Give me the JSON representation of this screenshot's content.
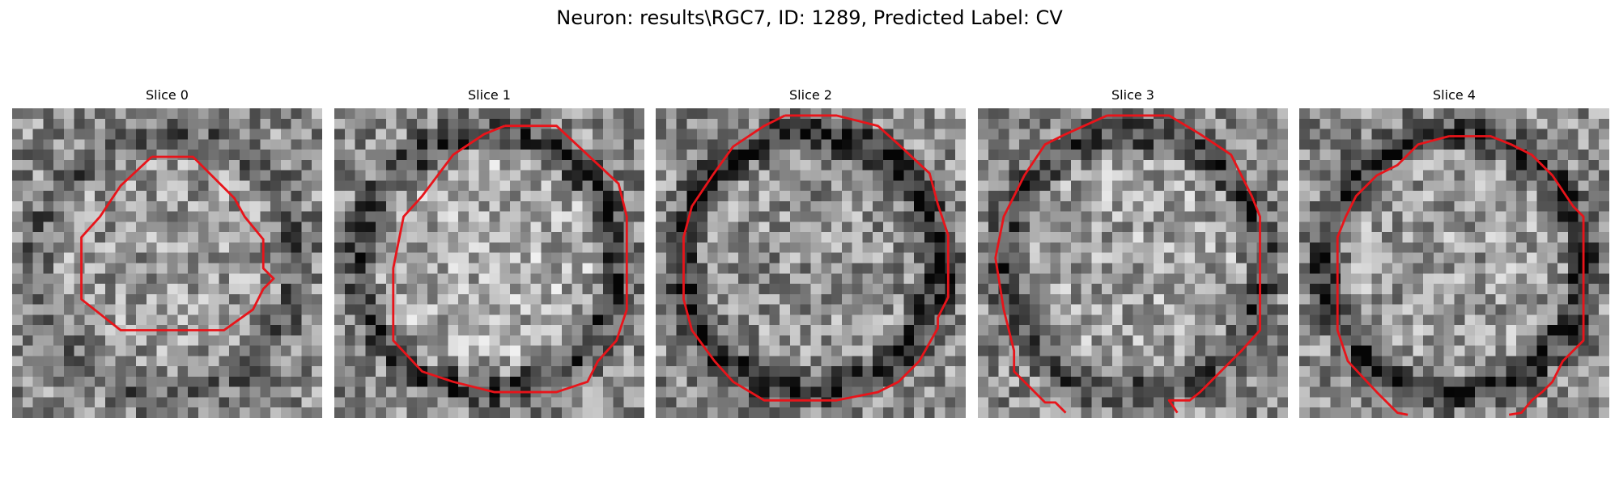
{
  "figure": {
    "title": "Neuron: results\\RGC7, ID: 1289, Predicted Label: CV"
  },
  "colors": {
    "outline": "#e8141a",
    "background": "#ffffff"
  },
  "grid_size": 30,
  "panels": [
    {
      "title": "Slice 0",
      "seed": 11,
      "ring_darkness": 0.18,
      "inner_brightness": 0.05,
      "outline": [
        [
          13.5,
          4.7
        ],
        [
          17.5,
          4.7
        ],
        [
          21.5,
          8.7
        ],
        [
          22.5,
          10.5
        ],
        [
          24.3,
          12.7
        ],
        [
          24.3,
          15.5
        ],
        [
          25.3,
          16.5
        ],
        [
          24.3,
          17.5
        ],
        [
          23.3,
          19.5
        ],
        [
          20.5,
          21.5
        ],
        [
          10.5,
          21.5
        ],
        [
          6.7,
          18.5
        ],
        [
          6.7,
          12.5
        ],
        [
          8.5,
          10.5
        ],
        [
          10.5,
          7.5
        ],
        [
          13.5,
          4.7
        ]
      ]
    },
    {
      "title": "Slice 1",
      "seed": 23,
      "ring_darkness": 0.32,
      "inner_brightness": 0.12,
      "outline": [
        [
          16.5,
          1.7
        ],
        [
          21.5,
          1.7
        ],
        [
          24.5,
          4.5
        ],
        [
          27.5,
          7.3
        ],
        [
          28.3,
          10.5
        ],
        [
          28.3,
          17.5
        ],
        [
          28.3,
          19.5
        ],
        [
          27.3,
          22.5
        ],
        [
          25.5,
          24.5
        ],
        [
          24.5,
          26.5
        ],
        [
          21.5,
          27.5
        ],
        [
          15.5,
          27.5
        ],
        [
          11.5,
          26.5
        ],
        [
          8.5,
          25.5
        ],
        [
          5.7,
          22.5
        ],
        [
          5.7,
          16.5
        ],
        [
          5.7,
          15.5
        ],
        [
          6.7,
          10.5
        ],
        [
          8.5,
          8.5
        ],
        [
          11.5,
          4.5
        ],
        [
          14.5,
          2.5
        ],
        [
          16.5,
          1.7
        ]
      ]
    },
    {
      "title": "Slice 2",
      "seed": 37,
      "ring_darkness": 0.42,
      "inner_brightness": 0.02,
      "outline": [
        [
          12.5,
          0.7
        ],
        [
          17.5,
          0.7
        ],
        [
          21.5,
          1.7
        ],
        [
          23.5,
          3.5
        ],
        [
          26.5,
          6.3
        ],
        [
          27.3,
          9.3
        ],
        [
          28.3,
          12.3
        ],
        [
          28.3,
          18.3
        ],
        [
          27.3,
          20.3
        ],
        [
          27.3,
          21.3
        ],
        [
          25.5,
          24.5
        ],
        [
          23.5,
          26.5
        ],
        [
          21.5,
          27.5
        ],
        [
          17.5,
          28.3
        ],
        [
          10.5,
          28.3
        ],
        [
          7.5,
          26.5
        ],
        [
          5.7,
          24.5
        ],
        [
          3.5,
          21.5
        ],
        [
          2.7,
          18.5
        ],
        [
          2.7,
          14.5
        ],
        [
          2.7,
          12.5
        ],
        [
          3.5,
          9.5
        ],
        [
          5.5,
          6.5
        ],
        [
          7.5,
          3.7
        ],
        [
          10.5,
          1.7
        ],
        [
          12.5,
          0.7
        ]
      ]
    },
    {
      "title": "Slice 3",
      "seed": 53,
      "ring_darkness": 0.3,
      "inner_brightness": 0.08,
      "outline": [
        [
          12.5,
          0.7
        ],
        [
          18.5,
          0.7
        ],
        [
          21.5,
          2.5
        ],
        [
          24.5,
          4.5
        ],
        [
          25.5,
          6.5
        ],
        [
          26.5,
          8.5
        ],
        [
          27.3,
          10.5
        ],
        [
          27.3,
          21.5
        ],
        [
          25.5,
          23.5
        ],
        [
          23.5,
          25.5
        ],
        [
          21.5,
          27.5
        ],
        [
          20.5,
          28.3
        ],
        [
          18.5,
          28.3
        ],
        [
          19.3,
          29.5
        ]
      ],
      "outline_b": [
        [
          8.5,
          29.5
        ],
        [
          7.5,
          28.5
        ],
        [
          6.5,
          28.5
        ],
        [
          3.5,
          25.5
        ],
        [
          3.5,
          23.5
        ],
        [
          2.5,
          19.5
        ],
        [
          1.7,
          14.5
        ],
        [
          2.5,
          10.5
        ],
        [
          3.5,
          8.5
        ],
        [
          4.5,
          6.5
        ],
        [
          6.5,
          3.5
        ],
        [
          8.5,
          2.5
        ],
        [
          12.5,
          0.7
        ]
      ]
    },
    {
      "title": "Slice 4",
      "seed": 71,
      "ring_darkness": 0.36,
      "inner_brightness": 0.06,
      "outline": [
        [
          14.5,
          2.7
        ],
        [
          18.5,
          2.7
        ],
        [
          20.5,
          3.5
        ],
        [
          22.5,
          4.5
        ],
        [
          24.5,
          6.5
        ],
        [
          26.5,
          9.5
        ],
        [
          27.5,
          10.5
        ],
        [
          27.5,
          22.5
        ],
        [
          25.5,
          24.5
        ],
        [
          24.5,
          26.5
        ],
        [
          23.5,
          27.5
        ],
        [
          22.5,
          28.3
        ],
        [
          21.5,
          29.5
        ],
        [
          20.3,
          29.7
        ]
      ],
      "outline_b": [
        [
          10.5,
          29.7
        ],
        [
          9.5,
          29.5
        ],
        [
          7.5,
          27.5
        ],
        [
          4.7,
          24.5
        ],
        [
          3.7,
          21.5
        ],
        [
          3.7,
          12.5
        ],
        [
          4.5,
          10.5
        ],
        [
          5.5,
          8.5
        ],
        [
          7.5,
          6.5
        ],
        [
          9.5,
          5.5
        ],
        [
          11.5,
          3.5
        ],
        [
          14.5,
          2.7
        ]
      ]
    }
  ]
}
